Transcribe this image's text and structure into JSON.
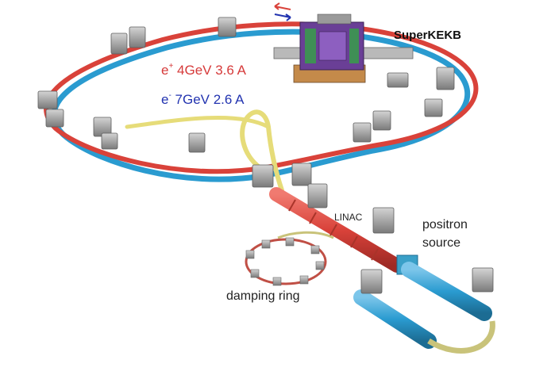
{
  "labels": {
    "title": "SuperKEKB",
    "positron_prefix": "e",
    "positron_sup": "+",
    "positron_beam": " 4GeV 3.6 A",
    "electron_prefix": "e",
    "electron_sup": "-",
    "electron_beam": " 7GeV 2.6 A",
    "linac": "LINAC",
    "positron_source_line1": "positron",
    "positron_source_line2": "source",
    "damping_ring": "damping ring"
  },
  "colors": {
    "positron_ring": "#d9423a",
    "electron_ring": "#2a9bd0",
    "transport_line": "#e6dc79",
    "linac": "#d8533f",
    "linac_segment": "#a9342a",
    "positron_linac": "#2d94c4",
    "magnet_frame": "#8d8d8d",
    "detector_purple": "#6a3f96",
    "detector_green": "#3f8f55",
    "detector_orange": "#c48a4a"
  },
  "icons": {
    "beam_direction": "double-arrow-icon"
  }
}
